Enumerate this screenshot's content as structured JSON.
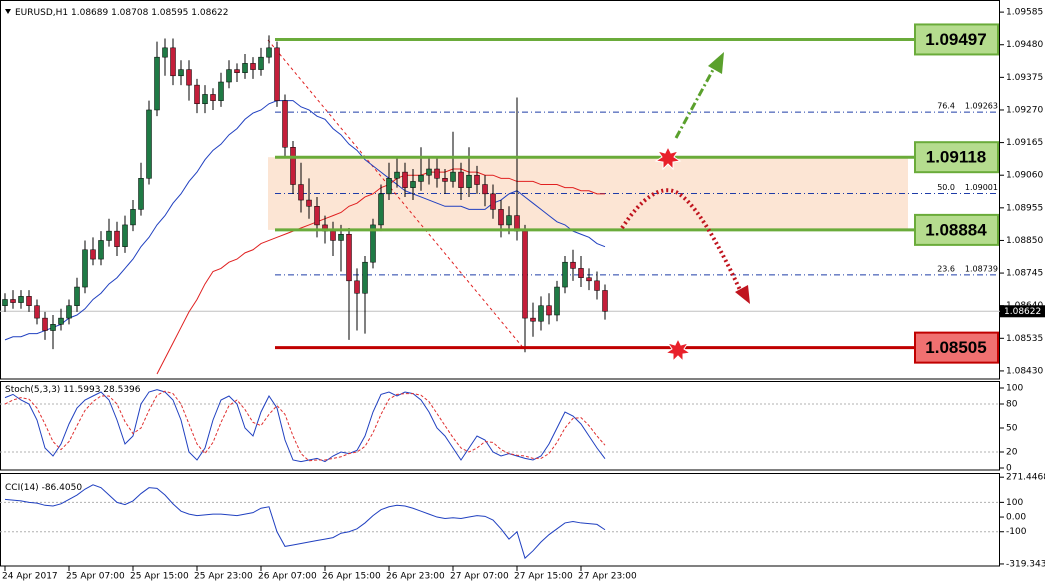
{
  "chart_data": [
    {
      "type": "candlestick",
      "title": "EURUSD,H1",
      "categories": [
        "24 Apr 2017",
        null,
        null,
        null,
        null,
        null,
        null,
        null,
        "25 Apr 07:00",
        null,
        null,
        null,
        null,
        null,
        null,
        null,
        "25 Apr 15:00",
        null,
        null,
        null,
        null,
        null,
        null,
        null,
        "25 Apr 23:00",
        null,
        null,
        null,
        null,
        null,
        null,
        null,
        "26 Apr 07:00",
        null,
        null,
        null,
        null,
        null,
        null,
        null,
        "26 Apr 15:00",
        null,
        null,
        null,
        null,
        null,
        null,
        null,
        "26 Apr 23:00",
        null,
        null,
        null,
        null,
        null,
        null,
        null,
        "27 Apr 07:00",
        null,
        null,
        null,
        null,
        null,
        null,
        null,
        "27 Apr 15:00",
        null,
        null,
        null,
        null,
        null,
        null,
        null,
        "27 Apr 23:00",
        null,
        null,
        null
      ],
      "open": [
        1.0864,
        1.0866,
        1.0865,
        1.0867,
        1.0864,
        1.086,
        1.0856,
        1.0858,
        1.086,
        1.0864,
        1.087,
        1.0882,
        1.0879,
        1.0885,
        1.0888,
        1.0883,
        1.089,
        1.0895,
        1.0905,
        1.0927,
        1.0944,
        1.0947,
        1.0938,
        1.094,
        1.0935,
        1.0929,
        1.0932,
        1.093,
        1.0936,
        1.094,
        1.0939,
        1.0942,
        1.094,
        1.0944,
        1.0947,
        1.093,
        1.0915,
        1.0903,
        1.0898,
        1.0896,
        1.089,
        1.0888,
        1.0885,
        1.0887,
        1.0872,
        1.0868,
        1.0878,
        1.089,
        1.09,
        1.0905,
        1.0907,
        1.0902,
        1.0904,
        1.0906,
        1.0908,
        1.0905,
        1.0904,
        1.0907,
        1.0902,
        1.0906,
        1.0903,
        1.09,
        1.0895,
        1.089,
        1.0893,
        1.0888,
        1.086,
        1.0859,
        1.0864,
        1.0861,
        1.087,
        1.0878,
        1.0876,
        1.0873,
        1.0872,
        1.08689
      ],
      "high": [
        1.0868,
        1.0869,
        1.0869,
        1.0869,
        1.0866,
        1.0862,
        1.0861,
        1.0863,
        1.0866,
        1.0873,
        1.0885,
        1.0886,
        1.0888,
        1.0892,
        1.0891,
        1.0893,
        1.0898,
        1.091,
        1.093,
        1.0949,
        1.095,
        1.095,
        1.0943,
        1.0943,
        1.0937,
        1.0935,
        1.0934,
        1.0939,
        1.0943,
        1.0942,
        1.0945,
        1.0944,
        1.0947,
        1.0951,
        1.0949,
        1.0932,
        1.0917,
        1.091,
        1.0905,
        1.0899,
        1.0893,
        1.0891,
        1.089,
        1.0889,
        1.0876,
        1.088,
        1.0892,
        1.0903,
        1.091,
        1.0912,
        1.091,
        1.0908,
        1.0915,
        1.0912,
        1.0912,
        1.0908,
        1.092,
        1.091,
        1.0915,
        1.0909,
        1.0906,
        1.0903,
        1.0898,
        1.0896,
        1.0931,
        1.089,
        1.0865,
        1.0867,
        1.0868,
        1.0872,
        1.088,
        1.0882,
        1.088,
        1.0876,
        1.0875,
        1.08708
      ],
      "low": [
        1.0862,
        1.0863,
        1.0863,
        1.0862,
        1.0858,
        1.0853,
        1.085,
        1.0856,
        1.0858,
        1.0862,
        1.0868,
        1.0877,
        1.0877,
        1.0883,
        1.088,
        1.0881,
        1.0888,
        1.0893,
        1.0903,
        1.0925,
        1.0938,
        1.0935,
        1.0935,
        1.093,
        1.0926,
        1.0926,
        1.0927,
        1.0928,
        1.0934,
        1.0936,
        1.0937,
        1.0937,
        1.0938,
        1.0942,
        1.0928,
        1.0912,
        1.09,
        1.0894,
        1.0892,
        1.0886,
        1.0884,
        1.088,
        1.0875,
        1.0853,
        1.0856,
        1.0855,
        1.0876,
        1.0888,
        1.0898,
        1.0902,
        1.0899,
        1.0898,
        1.0901,
        1.0903,
        1.0902,
        1.09,
        1.0902,
        1.0898,
        1.0899,
        1.09,
        1.0896,
        1.0892,
        1.0886,
        1.0887,
        1.0885,
        1.0849,
        1.0854,
        1.0856,
        1.0858,
        1.0859,
        1.0868,
        1.0872,
        1.087,
        1.0869,
        1.0866,
        1.08595
      ],
      "close": [
        1.0866,
        1.0865,
        1.0867,
        1.0864,
        1.086,
        1.0856,
        1.0858,
        1.086,
        1.0864,
        1.087,
        1.0882,
        1.0879,
        1.0885,
        1.0888,
        1.0883,
        1.089,
        1.0895,
        1.0905,
        1.0927,
        1.0944,
        1.0947,
        1.0938,
        1.094,
        1.0935,
        1.0929,
        1.0932,
        1.093,
        1.0936,
        1.094,
        1.0939,
        1.0942,
        1.094,
        1.0944,
        1.0947,
        1.093,
        1.0915,
        1.0903,
        1.0898,
        1.0896,
        1.089,
        1.0888,
        1.0885,
        1.0887,
        1.0872,
        1.0868,
        1.0878,
        1.089,
        1.09,
        1.0905,
        1.0907,
        1.0902,
        1.0904,
        1.0906,
        1.0908,
        1.0905,
        1.0904,
        1.0907,
        1.0902,
        1.0906,
        1.0903,
        1.09,
        1.0895,
        1.089,
        1.0893,
        1.0888,
        1.086,
        1.0859,
        1.0864,
        1.0861,
        1.087,
        1.0878,
        1.0876,
        1.0873,
        1.0872,
        1.08689,
        1.08622
      ],
      "up_color": "#1f7a45",
      "down_color": "#c41e3a",
      "lines": [
        {
          "color": "#2040c0",
          "values": [
            1.0853,
            1.0854,
            1.0854,
            1.0855,
            1.0855,
            1.0856,
            1.0857,
            1.0858,
            1.086,
            1.0861,
            1.0863,
            1.0866,
            1.0868,
            1.0871,
            1.0873,
            1.0876,
            1.0879,
            1.0883,
            1.0886,
            1.089,
            1.0893,
            1.0897,
            1.09,
            1.0904,
            1.0907,
            1.0911,
            1.0914,
            1.0916,
            1.0919,
            1.0921,
            1.0924,
            1.0926,
            1.0927,
            1.0929,
            1.093,
            1.093,
            1.093,
            1.0928,
            1.0927,
            1.0925,
            1.0924,
            1.0921,
            1.0919,
            1.0916,
            1.0914,
            1.0911,
            1.0909,
            1.0907,
            1.0905,
            1.0903,
            1.0901,
            1.09,
            1.0899,
            1.0898,
            1.0897,
            1.0896,
            1.0896,
            1.0896,
            1.0895,
            1.0895,
            1.0895,
            1.0897,
            1.0898,
            1.09,
            1.0901,
            1.0899,
            1.0897,
            1.0895,
            1.0893,
            1.0891,
            1.089,
            1.0888,
            1.0887,
            1.0886,
            1.0884,
            1.0883
          ]
        },
        {
          "color": "#e02020",
          "values": [
            null,
            null,
            null,
            null,
            null,
            null,
            null,
            null,
            null,
            null,
            null,
            null,
            null,
            null,
            null,
            null,
            null,
            null,
            null,
            1.0842,
            1.0847,
            1.0852,
            1.0857,
            1.0862,
            1.0866,
            1.0871,
            1.0875,
            1.0876,
            1.0878,
            1.0879,
            1.0881,
            1.0882,
            1.0884,
            1.0885,
            1.0886,
            1.0887,
            1.0888,
            1.0889,
            1.089,
            1.0891,
            1.0892,
            1.0893,
            1.0894,
            1.0896,
            1.0897,
            1.0899,
            1.09,
            1.0902,
            1.0903,
            1.0905,
            1.0906,
            1.0906,
            1.0906,
            1.0907,
            1.0907,
            1.0907,
            1.0908,
            1.0908,
            1.0907,
            1.0907,
            1.0906,
            1.0906,
            1.0905,
            1.0905,
            1.0904,
            1.0904,
            1.0904,
            1.0903,
            1.0903,
            1.0903,
            1.0902,
            1.0902,
            1.0901,
            1.0901,
            1.09,
            1.09
          ]
        }
      ],
      "ylim": [
        1.08404,
        1.09624
      ],
      "yticks": [
        1.09585,
        {
          "value": 1.0948,
          "label": "1.09480"
        },
        1.09375,
        {
          "value": 1.0927,
          "label": "1.09270"
        },
        1.09165,
        {
          "value": 1.0906,
          "label": "1.09060"
        },
        1.08955,
        {
          "value": 1.0885,
          "label": "1.08850"
        },
        1.08745,
        {
          "value": 1.0864,
          "label": "1.08640"
        },
        1.08535,
        {
          "value": 1.0843,
          "label": "1.08430"
        }
      ],
      "levels": [
        {
          "value": 1.09497,
          "color": "#6aab3a",
          "box": "#b5dc8e"
        },
        {
          "value": 1.09118,
          "color": "#6aab3a",
          "box": "#b5dc8e"
        },
        {
          "value": 1.08884,
          "color": "#6aab3a",
          "box": "#b5dc8e"
        },
        {
          "value": 1.08505,
          "color": "#c00000",
          "box": "#f07070"
        }
      ],
      "fib": [
        {
          "label": "76.4",
          "value": 1.09263
        },
        {
          "label": "50.0",
          "value": 1.09001
        },
        {
          "label": "23.6",
          "value": 1.08739
        }
      ]
    },
    {
      "type": "line",
      "title": "Stoch(5,3,3)",
      "series": [
        {
          "color": "#2040c0",
          "values": [
            88,
            92,
            85,
            80,
            60,
            25,
            15,
            30,
            55,
            75,
            85,
            90,
            95,
            85,
            60,
            30,
            40,
            80,
            95,
            98,
            95,
            85,
            60,
            20,
            10,
            25,
            60,
            85,
            90,
            80,
            50,
            40,
            70,
            90,
            75,
            35,
            10,
            8,
            10,
            12,
            8,
            15,
            20,
            18,
            22,
            40,
            70,
            92,
            95,
            90,
            95,
            93,
            85,
            70,
            50,
            40,
            25,
            10,
            25,
            40,
            35,
            20,
            15,
            18,
            15,
            12,
            10,
            15,
            30,
            50,
            70,
            65,
            55,
            40,
            25,
            11.5993
          ]
        },
        {
          "color": "#e03030",
          "dashed": true,
          "values": [
            80,
            85,
            88,
            86,
            75,
            55,
            33,
            23,
            33,
            53,
            72,
            83,
            90,
            90,
            80,
            58,
            43,
            50,
            72,
            91,
            96,
            93,
            80,
            55,
            30,
            18,
            32,
            57,
            78,
            85,
            73,
            57,
            53,
            67,
            78,
            67,
            40,
            18,
            9,
            10,
            10,
            12,
            14,
            18,
            20,
            27,
            44,
            67,
            86,
            92,
            93,
            93,
            91,
            83,
            68,
            53,
            38,
            25,
            20,
            25,
            33,
            32,
            23,
            18,
            16,
            15,
            12,
            12,
            18,
            32,
            50,
            62,
            63,
            53,
            40,
            28.5396
          ]
        }
      ],
      "ylim": [
        -2.5,
        108.75
      ],
      "yticks": [
        0,
        20,
        50,
        80,
        100
      ],
      "levels": [
        20,
        80
      ]
    },
    {
      "type": "line",
      "title": "CCI(14)",
      "current": {
        "value": -86.405,
        "label": "-86.4050"
      },
      "series": [
        {
          "color": "#2040c0",
          "values": [
            120,
            115,
            110,
            100,
            95,
            80,
            75,
            90,
            120,
            150,
            190,
            220,
            200,
            150,
            100,
            85,
            110,
            160,
            200,
            195,
            150,
            90,
            40,
            20,
            10,
            15,
            20,
            20,
            15,
            10,
            20,
            30,
            60,
            70,
            -100,
            -200,
            -190,
            -180,
            -170,
            -160,
            -150,
            -140,
            -110,
            -100,
            -80,
            -40,
            10,
            50,
            70,
            80,
            75,
            60,
            40,
            20,
            0,
            -10,
            -5,
            -10,
            0,
            10,
            5,
            -20,
            -80,
            -150,
            -100,
            -280,
            -230,
            -170,
            -120,
            -80,
            -40,
            -30,
            -40,
            -45,
            -50,
            -86.405
          ]
        }
      ],
      "ylim": [
        -333.3,
        300
      ],
      "yticks": [
        271.4468,
        100,
        {
          "value": 0,
          "label": "0.00"
        },
        -100,
        -319.3439
      ],
      "levels": [
        100,
        -100
      ]
    }
  ]
}
